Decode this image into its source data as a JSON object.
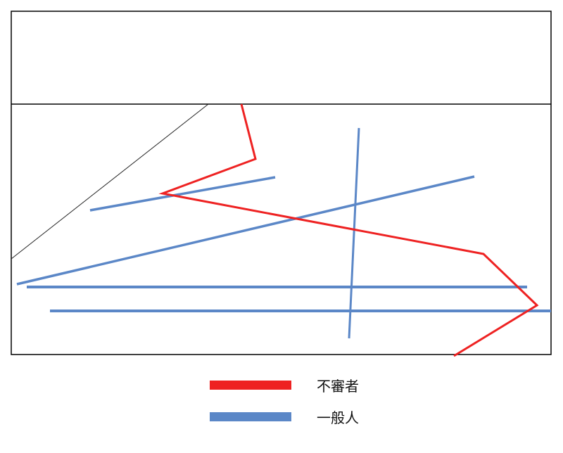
{
  "colors": {
    "suspicious": "#ee2222",
    "normal": "#5b87c7",
    "frame": "#000000",
    "diagonal": "#222222"
  },
  "legend": {
    "items": [
      {
        "key": "suspicious",
        "label": "不審者"
      },
      {
        "key": "normal",
        "label": "一般人"
      }
    ]
  }
}
